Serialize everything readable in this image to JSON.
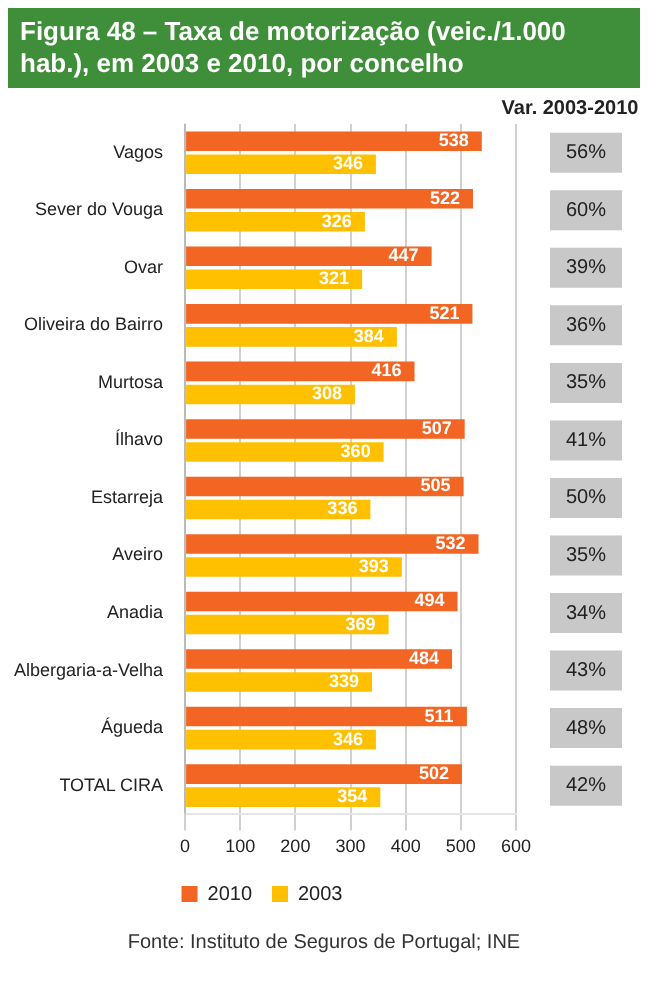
{
  "chart_data": {
    "type": "bar",
    "orientation": "horizontal",
    "title": "Figura 48 – Taxa de motorização (veic./1.000 hab.), em 2003 e 2010, por concelho",
    "categories": [
      "Vagos",
      "Sever do Vouga",
      "Ovar",
      "Oliveira do Bairro",
      "Murtosa",
      "Ílhavo",
      "Estarreja",
      "Aveiro",
      "Anadia",
      "Albergaria-a-Velha",
      "Águeda",
      "TOTAL CIRA"
    ],
    "series": [
      {
        "name": "2010",
        "color": "#f26522",
        "values": [
          538,
          522,
          447,
          521,
          416,
          507,
          505,
          532,
          494,
          484,
          511,
          502
        ]
      },
      {
        "name": "2003",
        "color": "#ffc000",
        "values": [
          346,
          326,
          321,
          384,
          308,
          360,
          336,
          393,
          369,
          339,
          346,
          354
        ]
      }
    ],
    "xlim": [
      0,
      600
    ],
    "xticks": [
      0,
      100,
      200,
      300,
      400,
      500,
      600
    ],
    "grid": "x",
    "legend": "bottom",
    "data_labels": true,
    "annotations": [
      "Var. 2003-2010",
      "56%",
      "60%",
      "39%",
      "36%",
      "35%",
      "41%",
      "50%",
      "35%",
      "34%",
      "43%",
      "48%",
      "42%",
      "Fonte: Instituto de Seguros de Portugal; INE"
    ]
  }
}
